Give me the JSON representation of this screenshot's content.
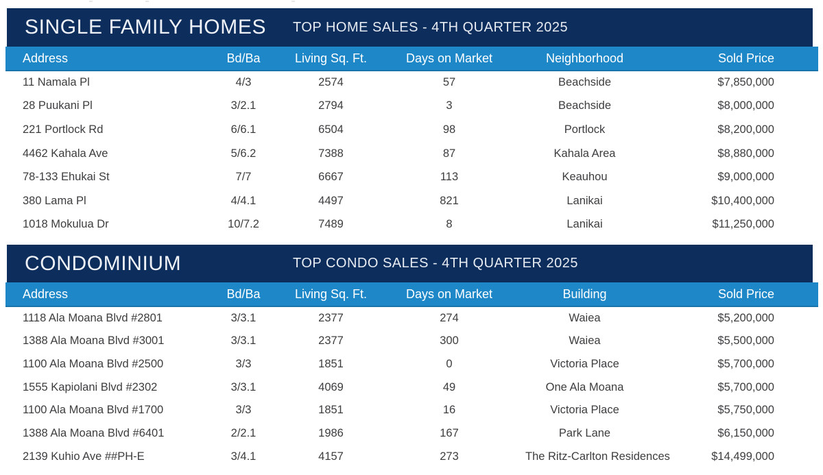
{
  "colors": {
    "title_band": "#0d2d5c",
    "header_band": "#1e87c8",
    "band_text": "#eef1f6",
    "body_text": "#3d3d3f"
  },
  "tables": [
    {
      "title": "SINGLE FAMILY HOMES",
      "subtitle": "TOP HOME SALES - 4TH QUARTER 2025",
      "columns": [
        "Address",
        "Bd/Ba",
        "Living Sq. Ft.",
        "Days on Market",
        "Neighborhood",
        "Sold Price"
      ],
      "rows": [
        [
          "11 Namala Pl",
          "4/3",
          "2574",
          "57",
          "Beachside",
          "$7,850,000"
        ],
        [
          "28 Puukani Pl",
          "3/2.1",
          "2794",
          "3",
          "Beachside",
          "$8,000,000"
        ],
        [
          "221 Portlock Rd",
          "6/6.1",
          "6504",
          "98",
          "Portlock",
          "$8,200,000"
        ],
        [
          "4462 Kahala Ave",
          "5/6.2",
          "7388",
          "87",
          "Kahala Area",
          "$8,880,000"
        ],
        [
          "78-133 Ehukai St",
          "7/7",
          "6667",
          "113",
          "Keauhou",
          "$9,000,000"
        ],
        [
          "380 Lama Pl",
          "4/4.1",
          "4497",
          "821",
          "Lanikai",
          "$10,400,000"
        ],
        [
          "1018 Mokulua Dr",
          "10/7.2",
          "7489",
          "8",
          "Lanikai",
          "$11,250,000"
        ]
      ]
    },
    {
      "title": "CONDOMINIUM",
      "subtitle": "TOP CONDO SALES - 4TH QUARTER 2025",
      "columns": [
        "Address",
        "Bd/Ba",
        "Living Sq. Ft.",
        "Days on Market",
        "Building",
        "Sold Price"
      ],
      "rows": [
        [
          "1118 Ala Moana Blvd #2801",
          "3/3.1",
          "2377",
          "274",
          "Waiea",
          "$5,200,000"
        ],
        [
          "1388 Ala Moana Blvd #3001",
          "3/3.1",
          "2377",
          "300",
          "Waiea",
          "$5,500,000"
        ],
        [
          "1100 Ala Moana Blvd #2500",
          "3/3",
          "1851",
          "0",
          "Victoria Place",
          "$5,700,000"
        ],
        [
          "1555 Kapiolani Blvd #2302",
          "3/3.1",
          "4069",
          "49",
          "One Ala Moana",
          "$5,700,000"
        ],
        [
          "1100 Ala Moana Blvd #1700",
          "3/3",
          "1851",
          "16",
          "Victoria Place",
          "$5,750,000"
        ],
        [
          "1388 Ala Moana Blvd #6401",
          "2/2.1",
          "1986",
          "167",
          "Park Lane",
          "$6,150,000"
        ],
        [
          "2139 Kuhio Ave ##PH-E",
          "3/4.1",
          "4157",
          "273",
          "The Ritz-Carlton Residences",
          "$14,499,000"
        ]
      ]
    }
  ]
}
